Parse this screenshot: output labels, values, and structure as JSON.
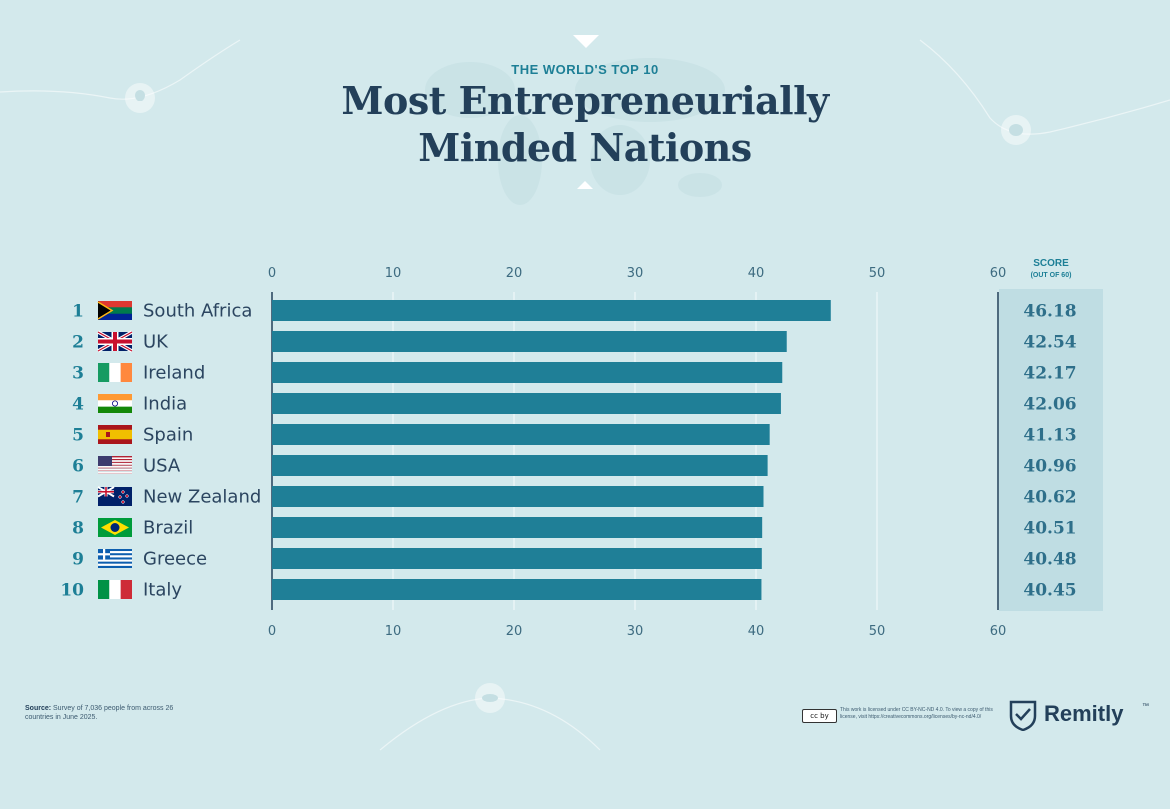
{
  "header": {
    "subtitle": "THE WORLD'S TOP 10",
    "title_line1": "Most Entrepreneurially",
    "title_line2": "Minded Nations"
  },
  "colors": {
    "background": "#d3e9ec",
    "bar": "#1f7f97",
    "title": "#23405a",
    "accent": "#1d7f96",
    "score_panel": "#bfdde3"
  },
  "chart_data": {
    "type": "bar",
    "orientation": "horizontal",
    "title": "Most Entrepreneurially Minded Nations",
    "xlim": [
      0,
      60
    ],
    "xticks": [
      0,
      10,
      20,
      30,
      40,
      50,
      60
    ],
    "grid": true,
    "ranks": [
      1,
      2,
      3,
      4,
      5,
      6,
      7,
      8,
      9,
      10
    ],
    "categories": [
      "South Africa",
      "UK",
      "Ireland",
      "India",
      "Spain",
      "USA",
      "New Zealand",
      "Brazil",
      "Greece",
      "Italy"
    ],
    "values": [
      46.18,
      42.54,
      42.17,
      42.06,
      41.13,
      40.96,
      40.62,
      40.51,
      40.48,
      40.45
    ],
    "score_labels": [
      "46.18",
      "42.54",
      "42.17",
      "42.06",
      "41.13",
      "40.96",
      "40.62",
      "40.51",
      "40.48",
      "40.45"
    ],
    "flags": [
      "south-africa-flag",
      "uk-flag",
      "ireland-flag",
      "india-flag",
      "spain-flag",
      "usa-flag",
      "new-zealand-flag",
      "brazil-flag",
      "greece-flag",
      "italy-flag"
    ],
    "score_header": "SCORE",
    "score_subheader": "(OUT OF 60)"
  },
  "footer": {
    "source_label": "Source:",
    "source_text": "Survey of 7,036 people from across 26 countries in June 2025.",
    "license_badge": "cc by",
    "license_text": "This work is licensed under CC BY-NC-ND 4.0. To view a copy of this license, visit https://creativecommons.org/licenses/by-nc-nd/4.0/",
    "brand": "Remitly",
    "brand_tm": "™"
  }
}
